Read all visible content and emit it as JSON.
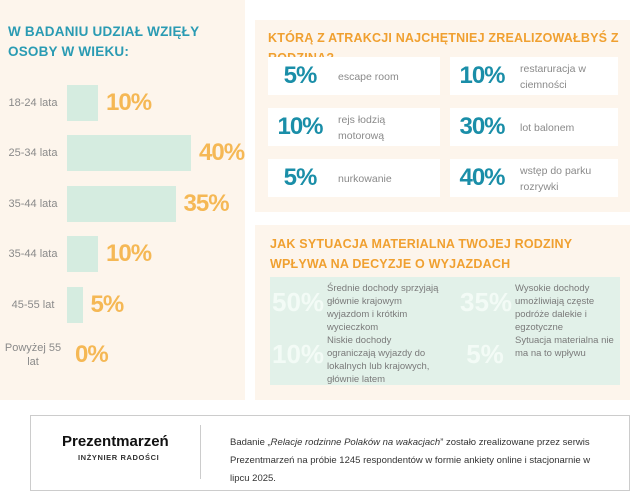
{
  "chart_data": {
    "type": "bar",
    "orientation": "horizontal",
    "title": "W BADANIU UDZIAŁ WZIĘŁY OSOBY W WIEKU:",
    "categories": [
      "18-24 lata",
      "25-34 lata",
      "35-44 lata",
      "35-44 lata",
      "45-55 lat",
      "Powyżej 55 lat"
    ],
    "values": [
      10,
      40,
      35,
      10,
      5,
      0
    ],
    "value_labels": [
      "10%",
      "40%",
      "35%",
      "10%",
      "5%",
      "0%"
    ],
    "color": "#d5ece0",
    "label_color": "#f5b855"
  },
  "attractions": {
    "title": "KTÓRĄ Z ATRAKCJI NAJCHĘTNIEJ ZREALIZOWAŁBYŚ Z RODZINĄ?",
    "items": [
      {
        "value": "5%",
        "label": "escape room"
      },
      {
        "value": "10%",
        "label": "restaruracja w ciemności"
      },
      {
        "value": "10%",
        "label": "rejs łodzią motorową"
      },
      {
        "value": "30%",
        "label": "lot balonem"
      },
      {
        "value": "5%",
        "label": "nurkowanie"
      },
      {
        "value": "40%",
        "label": "wstęp do parku rozrywki"
      }
    ]
  },
  "finances": {
    "title": "JAK SYTUACJA MATERIALNA TWOJEJ RODZINY WPŁYWA NA DECYZJE O WYJAZDACH TURYSTYCZNYCH?",
    "items": [
      {
        "value": "50%",
        "label": "Średnie dochody sprzyjają głównie krajowym wyjazdom i krótkim wycieczkom"
      },
      {
        "value": "35%",
        "label": "Wysokie dochody umożliwiają częste podróże dalekie i egzotyczne"
      },
      {
        "value": "10%",
        "label": "Niskie dochody ograniczają wyjazdy do lokalnych lub krajowych, głównie latem"
      },
      {
        "value": "5%",
        "label": "Sytuacja materialna nie ma na to wpływu"
      }
    ]
  },
  "footer": {
    "logo": "Prezentmarzeń",
    "tagline": "INŻYNIER RADOŚCI",
    "text_prefix": "Badanie „",
    "text_italic": "Relacje rodzinne Polaków na wakacjach",
    "text_suffix": "” zostało zrealizowane przez serwis Prezentmarzeń na próbie 1245 respondentów w formie ankiety online i stacjonarnie w lipcu 2025."
  }
}
